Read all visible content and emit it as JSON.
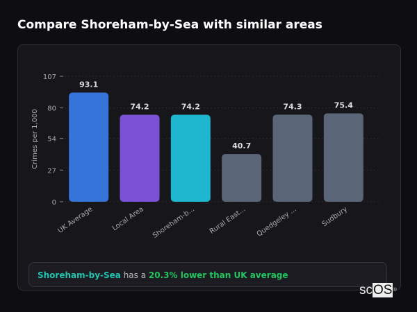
{
  "header": {
    "title": "Compare Shoreham-by-Sea with similar areas"
  },
  "chart_data": {
    "type": "bar",
    "categories": [
      "UK Average",
      "Local Area",
      "Shoreham-b...",
      "Rural East...",
      "Quedgeley ...",
      "Sudbury"
    ],
    "values": [
      93.1,
      74.2,
      74.2,
      40.7,
      74.3,
      75.4
    ],
    "value_labels": [
      "93.1",
      "74.2",
      "74.2",
      "40.7",
      "74.3",
      "75.4"
    ],
    "colors": [
      "#3674d9",
      "#7b52d6",
      "#1fb6cf",
      "#5a6577",
      "#5a6577",
      "#5a6577"
    ],
    "ylabel": "Crimes per 1,000",
    "xlabel": "",
    "yticks": [
      0,
      27,
      54,
      80,
      107
    ],
    "ylim": [
      0,
      107
    ],
    "grid": true
  },
  "summary": {
    "place": "Shoreham-by-Sea",
    "middle": " has a ",
    "stat": "20.3% lower than UK average"
  },
  "logo": {
    "text1": "sc",
    "text2": "OS",
    "mark": "®"
  }
}
